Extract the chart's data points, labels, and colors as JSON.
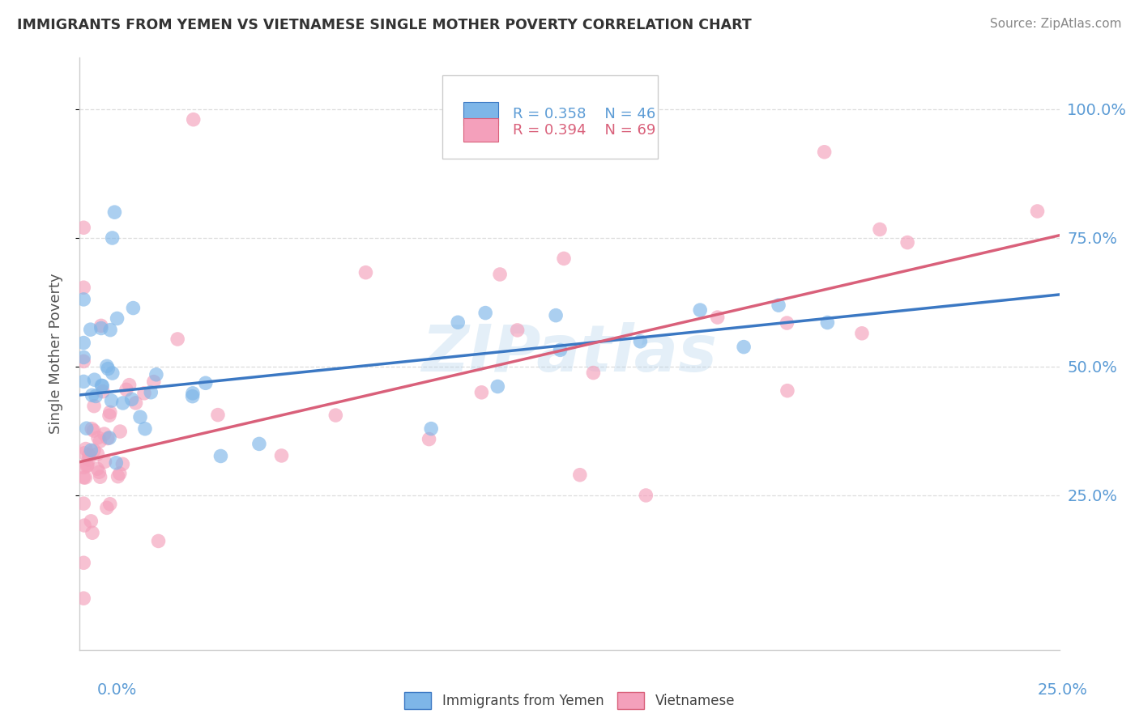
{
  "title": "IMMIGRANTS FROM YEMEN VS VIETNAMESE SINGLE MOTHER POVERTY CORRELATION CHART",
  "source": "Source: ZipAtlas.com",
  "ylabel": "Single Mother Poverty",
  "yticks_labels": [
    "25.0%",
    "50.0%",
    "75.0%",
    "100.0%"
  ],
  "ytick_vals": [
    0.25,
    0.5,
    0.75,
    1.0
  ],
  "xlim": [
    0.0,
    0.25
  ],
  "ylim": [
    -0.05,
    1.1
  ],
  "blue_R": 0.358,
  "blue_N": 46,
  "pink_R": 0.394,
  "pink_N": 69,
  "blue_color": "#7EB6E8",
  "pink_color": "#F4A0BB",
  "blue_line_color": "#3B78C3",
  "pink_line_color": "#D9607A",
  "watermark": "ZIPatlas",
  "legend_blue_label": "Immigrants from Yemen",
  "legend_pink_label": "Vietnamese",
  "background_color": "#FFFFFF",
  "tick_color": "#5B9BD5",
  "title_color": "#333333",
  "ylabel_color": "#555555",
  "grid_color": "#DDDDDD",
  "spine_color": "#CCCCCC",
  "blue_intercept": 0.45,
  "blue_slope": 0.8,
  "pink_intercept": 0.32,
  "pink_slope": 1.72
}
